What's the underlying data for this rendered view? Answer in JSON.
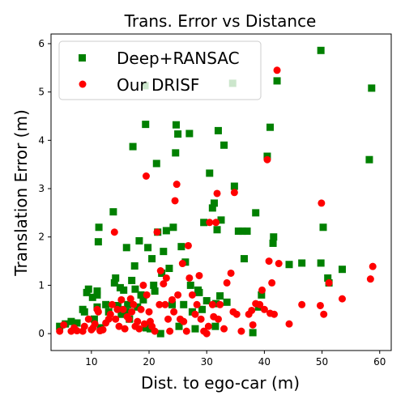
{
  "chart_data": {
    "type": "scatter",
    "title": "Trans. Error vs Distance",
    "xlabel": "Dist. to ego-car (m)",
    "ylabel": "Translation Error (m)",
    "xlim": [
      3,
      62
    ],
    "ylim": [
      -0.35,
      6.2
    ],
    "xticks": [
      10,
      20,
      30,
      40,
      50,
      60
    ],
    "yticks": [
      0,
      1,
      2,
      3,
      4,
      5,
      6
    ],
    "grid": false,
    "legend_position": "top-left",
    "series": [
      {
        "name": "Deep+RANSAC",
        "marker": "square",
        "color": "#008000",
        "points": [
          [
            4.5,
            0.15
          ],
          [
            5.5,
            0.2
          ],
          [
            6.5,
            0.25
          ],
          [
            7.5,
            0.22
          ],
          [
            8.5,
            0.5
          ],
          [
            8.8,
            0.45
          ],
          [
            9.2,
            0.85
          ],
          [
            9.5,
            0.92
          ],
          [
            10.2,
            0.75
          ],
          [
            10.5,
            0.3
          ],
          [
            11,
            0.88
          ],
          [
            11,
            0.8
          ],
          [
            11,
            0.55
          ],
          [
            11.2,
            1.9
          ],
          [
            11.3,
            2.2
          ],
          [
            11.6,
            0.12
          ],
          [
            12.5,
            0.6
          ],
          [
            13,
            0.45
          ],
          [
            13.8,
            2.52
          ],
          [
            14,
            1.05
          ],
          [
            14.2,
            1.15
          ],
          [
            14.6,
            0.58
          ],
          [
            15,
            0.95
          ],
          [
            15.2,
            0.4
          ],
          [
            15.6,
            0.9
          ],
          [
            16,
            0.45
          ],
          [
            16.1,
            1.78
          ],
          [
            16.3,
            0.6
          ],
          [
            16.6,
            0.3
          ],
          [
            17,
            1.1
          ],
          [
            17.2,
            3.87
          ],
          [
            17.5,
            1.4
          ],
          [
            17.6,
            0.92
          ],
          [
            18,
            0.55
          ],
          [
            18.3,
            1.92
          ],
          [
            18.6,
            0.8
          ],
          [
            19,
            0.7
          ],
          [
            19.3,
            5.13
          ],
          [
            19.4,
            4.33
          ],
          [
            19.5,
            0.12
          ],
          [
            19.8,
            1.78
          ],
          [
            20.2,
            0.1
          ],
          [
            20.5,
            1.55
          ],
          [
            20.8,
            1.0
          ],
          [
            21,
            0.88
          ],
          [
            21.3,
            3.52
          ],
          [
            21.5,
            2.1
          ],
          [
            22,
            0.0
          ],
          [
            22.2,
            1.25
          ],
          [
            22.5,
            1.7
          ],
          [
            23,
            2.13
          ],
          [
            23.5,
            1.35
          ],
          [
            24,
            0.6
          ],
          [
            24.2,
            2.2
          ],
          [
            24.6,
            3.74
          ],
          [
            24.7,
            4.32
          ],
          [
            25,
            4.13
          ],
          [
            25.2,
            0.15
          ],
          [
            25.6,
            1.8
          ],
          [
            26,
            0.6
          ],
          [
            26.3,
            1.48
          ],
          [
            27,
            4.14
          ],
          [
            27.2,
            1.0
          ],
          [
            27.5,
            0.45
          ],
          [
            28,
            0.1
          ],
          [
            28.5,
            0.9
          ],
          [
            28.7,
            0.85
          ],
          [
            29.2,
            0.5
          ],
          [
            29.5,
            2.3
          ],
          [
            30,
            0.68
          ],
          [
            30.5,
            3.32
          ],
          [
            31,
            2.6
          ],
          [
            31.3,
            2.7
          ],
          [
            31.5,
            0.15
          ],
          [
            31.6,
            0.62
          ],
          [
            31.8,
            2.15
          ],
          [
            32,
            4.2
          ],
          [
            32.3,
            0.78
          ],
          [
            32.5,
            2.35
          ],
          [
            33,
            3.9
          ],
          [
            33.5,
            0.65
          ],
          [
            34.5,
            5.18
          ],
          [
            34.8,
            3.05
          ],
          [
            35.5,
            2.12
          ],
          [
            36.2,
            2.12
          ],
          [
            36.5,
            1.55
          ],
          [
            37,
            2.12
          ],
          [
            38,
            0.02
          ],
          [
            38.5,
            2.5
          ],
          [
            39,
            0.55
          ],
          [
            39.5,
            0.8
          ],
          [
            40.5,
            3.67
          ],
          [
            41,
            4.27
          ],
          [
            41.5,
            1.87
          ],
          [
            41.6,
            2.0
          ],
          [
            42.2,
            5.23
          ],
          [
            44.3,
            1.43
          ],
          [
            46.5,
            1.46
          ],
          [
            49.8,
            5.86
          ],
          [
            49.8,
            1.46
          ],
          [
            50.2,
            2.2
          ],
          [
            51,
            1.15
          ],
          [
            51.2,
            1.05
          ],
          [
            53.5,
            1.33
          ],
          [
            58.2,
            3.6
          ],
          [
            58.6,
            5.08
          ]
        ]
      },
      {
        "name": "Our DRISF",
        "marker": "circle",
        "color": "#ff0000",
        "points": [
          [
            4.5,
            0.05
          ],
          [
            5.2,
            0.18
          ],
          [
            6.5,
            0.05
          ],
          [
            7,
            0.12
          ],
          [
            7.5,
            0.06
          ],
          [
            8.5,
            0.05
          ],
          [
            8.8,
            0.15
          ],
          [
            9.5,
            0.3
          ],
          [
            10,
            0.08
          ],
          [
            10.3,
            0.12
          ],
          [
            10.6,
            0.2
          ],
          [
            11,
            0.5
          ],
          [
            11.2,
            0.45
          ],
          [
            11.5,
            0.06
          ],
          [
            12,
            0.08
          ],
          [
            12.5,
            0.22
          ],
          [
            13,
            0.3
          ],
          [
            13.3,
            0.4
          ],
          [
            13.6,
            0.6
          ],
          [
            14,
            2.1
          ],
          [
            14.2,
            0.3
          ],
          [
            14.5,
            0.5
          ],
          [
            14.8,
            0.15
          ],
          [
            15.2,
            0.7
          ],
          [
            15.5,
            0.5
          ],
          [
            15.8,
            0.1
          ],
          [
            16.2,
            0.35
          ],
          [
            16.5,
            0.3
          ],
          [
            16.8,
            0.72
          ],
          [
            17,
            0.45
          ],
          [
            17.3,
            0.6
          ],
          [
            17.6,
            0.15
          ],
          [
            18,
            0.25
          ],
          [
            18.3,
            0.1
          ],
          [
            18.6,
            0.5
          ],
          [
            19,
            1.0
          ],
          [
            19.2,
            0.2
          ],
          [
            19.5,
            3.26
          ],
          [
            19.6,
            0.8
          ],
          [
            20,
            0.45
          ],
          [
            20.2,
            0.25
          ],
          [
            20.5,
            0.15
          ],
          [
            21,
            0.05
          ],
          [
            21.4,
            2.1
          ],
          [
            21.8,
            0.6
          ],
          [
            22,
            1.3
          ],
          [
            22.5,
            1.03
          ],
          [
            22.8,
            0.6
          ],
          [
            23,
            1.15
          ],
          [
            23.3,
            0.3
          ],
          [
            23.6,
            0.05
          ],
          [
            24,
            0.7
          ],
          [
            24.3,
            0.45
          ],
          [
            24.5,
            2.75
          ],
          [
            24.8,
            3.09
          ],
          [
            25,
            0.8
          ],
          [
            25.4,
            0.3
          ],
          [
            25.8,
            1.45
          ],
          [
            26,
            0.25
          ],
          [
            26.5,
            0.05
          ],
          [
            26.8,
            1.82
          ],
          [
            27,
            1.15
          ],
          [
            27.5,
            0.8
          ],
          [
            28,
            0.4
          ],
          [
            28.3,
            0.6
          ],
          [
            28.7,
            1.2
          ],
          [
            29,
            0.3
          ],
          [
            29.5,
            0.05
          ],
          [
            30,
            0.0
          ],
          [
            30.3,
            0.15
          ],
          [
            30.5,
            2.3
          ],
          [
            31,
            0.6
          ],
          [
            31.2,
            0.35
          ],
          [
            31.6,
            2.3
          ],
          [
            31.8,
            2.9
          ],
          [
            32,
            0.3
          ],
          [
            32.3,
            0.6
          ],
          [
            33,
            0.1
          ],
          [
            33.5,
            1.05
          ],
          [
            34.2,
            1.25
          ],
          [
            34.6,
            0.45
          ],
          [
            34.8,
            2.92
          ],
          [
            35.2,
            0.4
          ],
          [
            36,
            0.05
          ],
          [
            37.3,
            0.4
          ],
          [
            37.8,
            0.48
          ],
          [
            38,
            0.18
          ],
          [
            38.5,
            0.62
          ],
          [
            39.2,
            0.6
          ],
          [
            39.6,
            0.9
          ],
          [
            40,
            0.5
          ],
          [
            40.5,
            3.6
          ],
          [
            40.8,
            1.5
          ],
          [
            41,
            0.42
          ],
          [
            41.3,
            1.05
          ],
          [
            41.7,
            0.4
          ],
          [
            42.2,
            5.45
          ],
          [
            42.5,
            1.45
          ],
          [
            44.3,
            0.2
          ],
          [
            46.5,
            0.6
          ],
          [
            49.7,
            0.58
          ],
          [
            49.9,
            2.7
          ],
          [
            50.3,
            0.4
          ],
          [
            51.2,
            1.05
          ],
          [
            53.5,
            0.72
          ],
          [
            58.4,
            1.13
          ],
          [
            58.8,
            1.39
          ]
        ]
      }
    ]
  }
}
